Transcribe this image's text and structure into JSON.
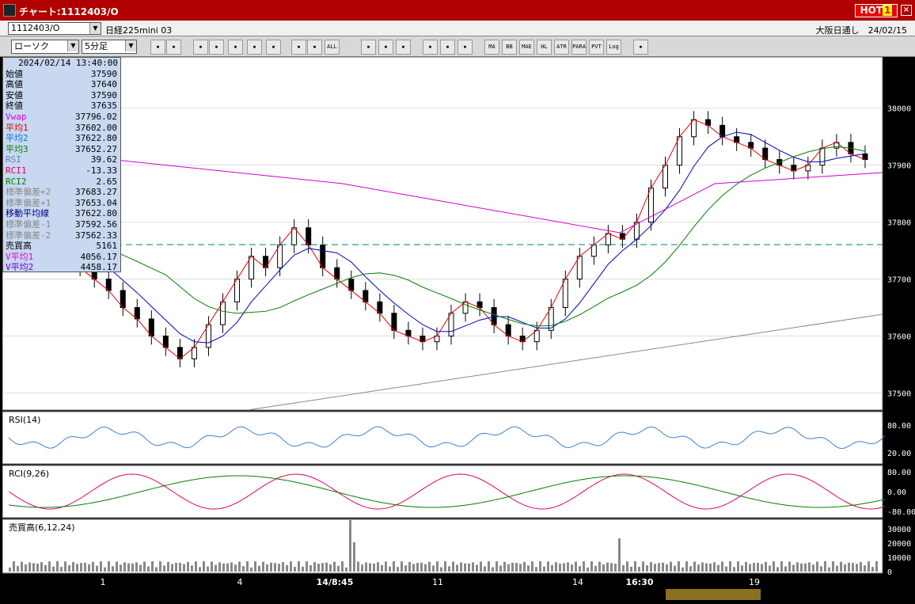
{
  "window": {
    "title": "チャート:1112403/O",
    "hot": "HOT",
    "hot_num": "1",
    "close": "×"
  },
  "infobar": {
    "symbol": "1112403/O",
    "instrument": "日経225mini 03",
    "market": "大阪日通し　24/02/15"
  },
  "toolbar": {
    "chart_type": "ローソク",
    "interval": "5分足",
    "buttons": [
      "zoom-icon",
      "grid-icon",
      "cursor-icon",
      "magnify-icon",
      "compare-icon",
      "split-icon",
      "page-icon",
      "prev-icon",
      "next-icon",
      "ALL",
      "pen-icon",
      "pointer-icon",
      "arrow-icon",
      "settings-icon",
      "wrench-icon",
      "palette-icon",
      "MA",
      "BB",
      "MAE",
      "HL",
      "ATR",
      "PARA",
      "PVT",
      "Log",
      "scale-icon"
    ]
  },
  "info": {
    "datetime": "2024/02/14  13:40:00",
    "rows": [
      {
        "label": "始値",
        "value": "37590",
        "color": "#000"
      },
      {
        "label": "高値",
        "value": "37640",
        "color": "#000"
      },
      {
        "label": "安値",
        "value": "37590",
        "color": "#000"
      },
      {
        "label": "終値",
        "value": "37635",
        "color": "#000"
      },
      {
        "label": "Vwap",
        "value": "37796.02",
        "color": "#e000e0"
      },
      {
        "label": "平均1",
        "value": "37602.00",
        "color": "#e00000"
      },
      {
        "label": "平均2",
        "value": "37622.80",
        "color": "#0070e0"
      },
      {
        "label": "平均3",
        "value": "37652.27",
        "color": "#008000"
      },
      {
        "label": "RSI",
        "value": "39.62",
        "color": "#6080c0"
      },
      {
        "label": "RCI1",
        "value": "-13.33",
        "color": "#e00060"
      },
      {
        "label": "RCI2",
        "value": "2.65",
        "color": "#008000"
      },
      {
        "label": "標準偏差+2",
        "value": "37683.27",
        "color": "#888"
      },
      {
        "label": "標準偏差+1",
        "value": "37653.04",
        "color": "#888"
      },
      {
        "label": "移動平均線",
        "value": "37622.80",
        "color": "#000080"
      },
      {
        "label": "標準偏差-1",
        "value": "37592.56",
        "color": "#888"
      },
      {
        "label": "標準偏差-2",
        "value": "37562.33",
        "color": "#888"
      },
      {
        "label": "売買高",
        "value": "5161",
        "color": "#000"
      },
      {
        "label": "V平均1",
        "value": "4056.17",
        "color": "#e000e0"
      },
      {
        "label": "V平均2",
        "value": "4458.17",
        "color": "#6000e0"
      }
    ]
  },
  "chart_data": [
    {
      "type": "line",
      "title": "",
      "price_ticks": [
        "38000",
        "37900",
        "37800",
        "37700",
        "37600",
        "37500"
      ],
      "ylim": [
        37470,
        38090
      ],
      "x_ticks": [
        "1",
        "4",
        "14/8:45",
        "11",
        "14",
        "16:30",
        "19"
      ],
      "close": [
        37810,
        37830,
        37790,
        37760,
        37740,
        37720,
        37700,
        37680,
        37650,
        37630,
        37600,
        37580,
        37560,
        37580,
        37620,
        37660,
        37700,
        37740,
        37720,
        37760,
        37790,
        37760,
        37720,
        37700,
        37680,
        37660,
        37640,
        37610,
        37600,
        37590,
        37600,
        37640,
        37660,
        37650,
        37620,
        37600,
        37590,
        37610,
        37650,
        37700,
        37740,
        37760,
        37780,
        37770,
        37800,
        37860,
        37900,
        37950,
        37980,
        37970,
        37950,
        37940,
        37930,
        37910,
        37900,
        37890,
        37900,
        37930,
        37940,
        37920,
        37910
      ]
    },
    {
      "type": "line",
      "title": "RSI(14)",
      "ticks": [
        "80.00",
        "20.00"
      ]
    },
    {
      "type": "line",
      "title": "RCI(9,26)",
      "ticks": [
        "80.00",
        "0.00",
        "-80.00"
      ]
    },
    {
      "type": "bar",
      "title": "売買高(6,12,24)",
      "ticks": [
        "30000",
        "20000",
        "10000",
        "0"
      ]
    }
  ]
}
